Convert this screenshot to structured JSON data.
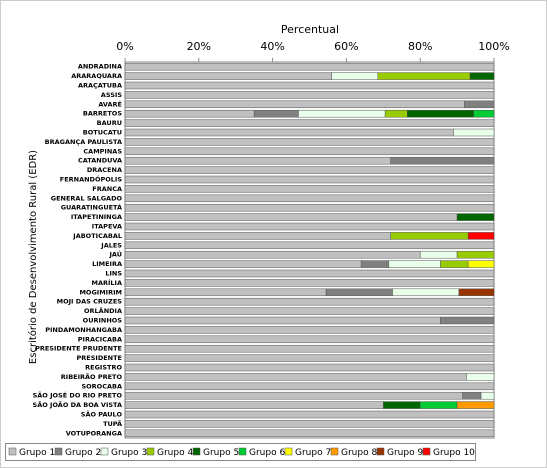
{
  "chart_data": {
    "type": "stacked-bar-horizontal",
    "title": "Percentual",
    "y_label": "Escritório de Desenvolvimento Rural (EDR)",
    "categories": [
      "ANDRADINA",
      "ARARAQUARA",
      "ARAÇATUBA",
      "ASSIS",
      "AVARÉ",
      "BARRETOS",
      "BAURU",
      "BOTUCATU",
      "BRAGANÇA PAULISTA",
      "CAMPINAS",
      "CATANDUVA",
      "DRACENA",
      "FERNANDÓPOLIS",
      "FRANCA",
      "GENERAL SALGADO",
      "GUARATINGUETÁ",
      "ITAPETININGA",
      "ITAPEVA",
      "JABOTICABAL",
      "JALES",
      "JAÚ",
      "LIMEIRA",
      "LINS",
      "MARÍLIA",
      "MOGIMIRIM",
      "MOJI DAS CRUZES",
      "ORLÂNDIA",
      "OURINHOS",
      "PINDAMONHANGABA",
      "PIRACICABA",
      "PRESIDENTE PRUDENTE",
      "PRESIDENTE",
      "REGISTRO",
      "RIBEIRÃO PRETO",
      "SOROCABA",
      "SÃO JOSÉ DO RIO PRETO",
      "SÃO JOÃO DA BOA VISTA",
      "SÃO PAULO",
      "TUPÃ",
      "VOTUPORANGA"
    ],
    "series": [
      {
        "name": "Grupo 1",
        "color": "#c0c0c0",
        "values": [
          100,
          56,
          100,
          100,
          92,
          35,
          100,
          89,
          100,
          100,
          72,
          100,
          100,
          100,
          100,
          100,
          90,
          100,
          72,
          100,
          80,
          64,
          100,
          100,
          54.5,
          100,
          100,
          85.5,
          100,
          100,
          100,
          100,
          100,
          92.5,
          100,
          91.5,
          70,
          100,
          100,
          100
        ]
      },
      {
        "name": "Grupo 2",
        "color": "#808080",
        "values": [
          0,
          0,
          0,
          0,
          8,
          12,
          0,
          0,
          0,
          0,
          28,
          0,
          0,
          0,
          0,
          0,
          0,
          0,
          0,
          0,
          0,
          7.5,
          0,
          0,
          18,
          0,
          0,
          14.5,
          0,
          0,
          0,
          0,
          0,
          0,
          0,
          5,
          0,
          0,
          0,
          0
        ]
      },
      {
        "name": "Grupo 3",
        "color": "#eaffea",
        "values": [
          0,
          12.5,
          0,
          0,
          0,
          23.5,
          0,
          11,
          0,
          0,
          0,
          0,
          0,
          0,
          0,
          0,
          0,
          0,
          0,
          0,
          10,
          14,
          0,
          0,
          18,
          0,
          0,
          0,
          0,
          0,
          0,
          0,
          0,
          7.5,
          0,
          3.5,
          0,
          0,
          0,
          0
        ]
      },
      {
        "name": "Grupo 4",
        "color": "#99cc00",
        "values": [
          0,
          25,
          0,
          0,
          0,
          6,
          0,
          0,
          0,
          0,
          0,
          0,
          0,
          0,
          0,
          0,
          0,
          0,
          21,
          0,
          10,
          7.5,
          0,
          0,
          0,
          0,
          0,
          0,
          0,
          0,
          0,
          0,
          0,
          0,
          0,
          0,
          0,
          0,
          0,
          0
        ]
      },
      {
        "name": "Grupo 5",
        "color": "#006600",
        "values": [
          0,
          6.5,
          0,
          0,
          0,
          18,
          0,
          0,
          0,
          0,
          0,
          0,
          0,
          0,
          0,
          0,
          10,
          0,
          0,
          0,
          0,
          0,
          0,
          0,
          0,
          0,
          0,
          0,
          0,
          0,
          0,
          0,
          0,
          0,
          0,
          0,
          10,
          0,
          0,
          0
        ]
      },
      {
        "name": "Grupo 6",
        "color": "#00cc33",
        "values": [
          0,
          0,
          0,
          0,
          0,
          5.5,
          0,
          0,
          0,
          0,
          0,
          0,
          0,
          0,
          0,
          0,
          0,
          0,
          0,
          0,
          0,
          0,
          0,
          0,
          0,
          0,
          0,
          0,
          0,
          0,
          0,
          0,
          0,
          0,
          0,
          0,
          10,
          0,
          0,
          0
        ]
      },
      {
        "name": "Grupo 7",
        "color": "#ffff00",
        "values": [
          0,
          0,
          0,
          0,
          0,
          0,
          0,
          0,
          0,
          0,
          0,
          0,
          0,
          0,
          0,
          0,
          0,
          0,
          0,
          0,
          0,
          7,
          0,
          0,
          0,
          0,
          0,
          0,
          0,
          0,
          0,
          0,
          0,
          0,
          0,
          0,
          0,
          0,
          0,
          0
        ]
      },
      {
        "name": "Grupo 8",
        "color": "#ff9900",
        "values": [
          0,
          0,
          0,
          0,
          0,
          0,
          0,
          0,
          0,
          0,
          0,
          0,
          0,
          0,
          0,
          0,
          0,
          0,
          0,
          0,
          0,
          0,
          0,
          0,
          0,
          0,
          0,
          0,
          0,
          0,
          0,
          0,
          0,
          0,
          0,
          0,
          10,
          0,
          0,
          0
        ]
      },
      {
        "name": "Grupo 9",
        "color": "#993300",
        "values": [
          0,
          0,
          0,
          0,
          0,
          0,
          0,
          0,
          0,
          0,
          0,
          0,
          0,
          0,
          0,
          0,
          0,
          0,
          0,
          0,
          0,
          0,
          0,
          0,
          9.5,
          0,
          0,
          0,
          0,
          0,
          0,
          0,
          0,
          0,
          0,
          0,
          0,
          0,
          0,
          0
        ]
      },
      {
        "name": "Grupo 10",
        "color": "#ff0000",
        "values": [
          0,
          0,
          0,
          0,
          0,
          0,
          0,
          0,
          0,
          0,
          0,
          0,
          0,
          0,
          0,
          0,
          0,
          0,
          7,
          0,
          0,
          0,
          0,
          0,
          0,
          0,
          0,
          0,
          0,
          0,
          0,
          0,
          0,
          0,
          0,
          0,
          0,
          0,
          0,
          0
        ]
      }
    ],
    "xlim": [
      0,
      100
    ],
    "xticks": [
      {
        "value": 0,
        "label": "0%"
      },
      {
        "value": 20,
        "label": "20%"
      },
      {
        "value": 40,
        "label": "40%"
      },
      {
        "value": 60,
        "label": "60%"
      },
      {
        "value": 80,
        "label": "80%"
      },
      {
        "value": 100,
        "label": "100%"
      }
    ],
    "legend": "bottom"
  }
}
